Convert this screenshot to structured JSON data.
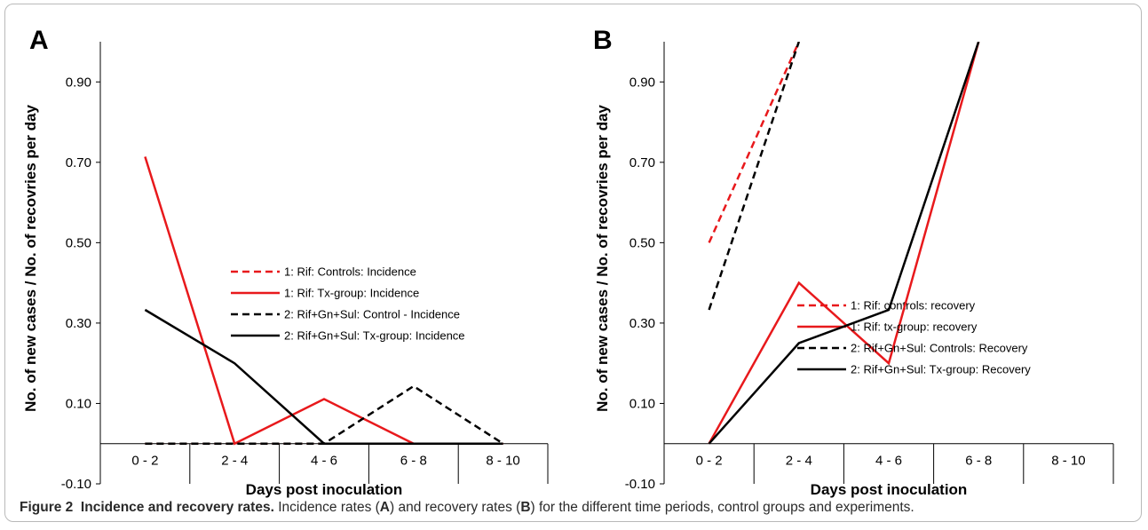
{
  "caption": {
    "figure_label": "Figure 2",
    "title": "Incidence and recovery rates.",
    "text_1": " Incidence rates (",
    "ref_a": "A",
    "text_2": ") and recovery rates (",
    "ref_b": "B",
    "text_3": ") for the different time periods, control groups and experiments."
  },
  "chart_data": [
    {
      "panel": "A",
      "type": "line",
      "xlabel": "Days post inoculation",
      "ylabel": "No. of new cases / No. of recovries per day",
      "categories": [
        "0 - 2",
        "2 - 4",
        "4 - 6",
        "6 - 8",
        "8 - 10"
      ],
      "ylim": [
        -0.1,
        1.0
      ],
      "yticks": [
        "-0.10",
        "0.10",
        "0.30",
        "0.50",
        "0.70",
        "0.90"
      ],
      "legend_position": "center-right",
      "series": [
        {
          "name": "1: Rif: Controls: Incidence",
          "color": "#e8191c",
          "dashed": true,
          "values": [
            0,
            0,
            0,
            0,
            0
          ]
        },
        {
          "name": "1: Rif: Tx-group: Incidence",
          "color": "#e8191c",
          "dashed": false,
          "values": [
            0.714,
            0,
            0.111,
            0,
            0
          ]
        },
        {
          "name": "2: Rif+Gn+Sul: Control - Incidence",
          "color": "#000000",
          "dashed": true,
          "values": [
            0,
            0,
            0,
            0.143,
            0
          ]
        },
        {
          "name": "2: Rif+Gn+Sul: Tx-group: Incidence",
          "color": "#000000",
          "dashed": false,
          "values": [
            0.333,
            0.2,
            0,
            0,
            0
          ]
        }
      ]
    },
    {
      "panel": "B",
      "type": "line",
      "xlabel": "Days post inoculation",
      "ylabel": "No. of new cases / No. of recovries per day",
      "categories": [
        "0 - 2",
        "2 - 4",
        "4 - 6",
        "6 - 8",
        "8 - 10"
      ],
      "ylim": [
        -0.1,
        1.0
      ],
      "yticks": [
        "-0.10",
        "0.10",
        "0.30",
        "0.50",
        "0.70",
        "0.90"
      ],
      "legend_position": "center-right",
      "series": [
        {
          "name": "1: Rif: controls: recovery",
          "color": "#e8191c",
          "dashed": true,
          "values": [
            0.5,
            1.0,
            null,
            null,
            null
          ]
        },
        {
          "name": "1: Rif: tx-group: recovery",
          "color": "#e8191c",
          "dashed": false,
          "values": [
            0,
            0.4,
            0.2,
            1.0,
            null
          ]
        },
        {
          "name": "2: Rif+Gn+Sul: Controls: Recovery",
          "color": "#000000",
          "dashed": true,
          "values": [
            0.333,
            1.0,
            null,
            null,
            null
          ]
        },
        {
          "name": "2: Rif+Gn+Sul: Tx-group: Recovery",
          "color": "#000000",
          "dashed": false,
          "values": [
            0,
            0.25,
            0.333,
            1.0,
            null
          ]
        }
      ]
    }
  ]
}
